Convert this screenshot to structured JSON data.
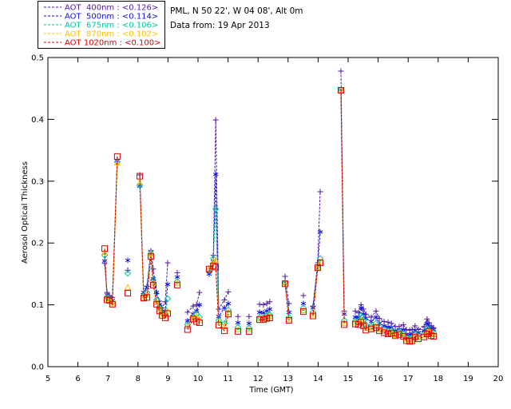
{
  "chart_data": {
    "type": "line",
    "title": "PML, N 50 22', W 04 08', Alt 0m",
    "subtitle": "Data from: 19 Apr 2013",
    "xlabel": "Time (GMT)",
    "ylabel": "Aerosol Optical Thickness",
    "xlim": [
      5,
      20
    ],
    "ylim": [
      0,
      0.5
    ],
    "xticks": [
      "5",
      "6",
      "7",
      "8",
      "9",
      "10",
      "11",
      "12",
      "13",
      "14",
      "15",
      "16",
      "17",
      "18",
      "19",
      "20"
    ],
    "yticks": [
      "0.0",
      "0.1",
      "0.2",
      "0.3",
      "0.4",
      "0.5"
    ],
    "grid": false,
    "legend_position": "top-left",
    "line_style": "dashed",
    "x": [
      6.89,
      6.97,
      7.05,
      7.15,
      7.31,
      7.66,
      8.06,
      8.19,
      8.3,
      8.43,
      8.51,
      8.62,
      8.72,
      8.8,
      8.91,
      8.99,
      9.31,
      9.65,
      9.84,
      9.95,
      10.05,
      10.37,
      10.51,
      10.59,
      10.69,
      10.88,
      11.01,
      11.33,
      11.7,
      12.05,
      12.18,
      12.29,
      12.39,
      12.9,
      13.03,
      13.51,
      13.83,
      13.99,
      14.07,
      14.76,
      14.87,
      15.24,
      15.35,
      15.43,
      15.51,
      15.59,
      15.77,
      15.93,
      16.04,
      16.2,
      16.33,
      16.44,
      16.57,
      16.7,
      16.84,
      16.94,
      17.05,
      17.13,
      17.23,
      17.34,
      17.53,
      17.63,
      17.69,
      17.77,
      17.85
    ],
    "series": [
      {
        "name": "AOT  400nm : <0.126>",
        "color": "#5018a0",
        "marker": "plus",
        "values": [
          0.167,
          0.12,
          0.115,
          0.112,
          0.335,
          0.156,
          0.31,
          0.118,
          0.13,
          0.187,
          0.158,
          0.118,
          0.106,
          0.095,
          0.105,
          0.168,
          0.152,
          0.088,
          0.098,
          0.1,
          0.12,
          0.153,
          0.18,
          0.399,
          0.093,
          0.108,
          0.121,
          0.081,
          0.081,
          0.101,
          0.1,
          0.102,
          0.105,
          0.146,
          0.102,
          0.115,
          0.098,
          0.168,
          0.283,
          0.478,
          0.09,
          0.09,
          0.087,
          0.1,
          0.093,
          0.085,
          0.08,
          0.09,
          0.078,
          0.073,
          0.072,
          0.07,
          0.065,
          0.065,
          0.068,
          0.06,
          0.059,
          0.06,
          0.066,
          0.06,
          0.065,
          0.077,
          0.071,
          0.066,
          0.063
        ]
      },
      {
        "name": "AOT  500nm : <0.114>",
        "color": "#1010e0",
        "marker": "asterisk",
        "values": [
          0.171,
          0.116,
          0.112,
          0.107,
          0.333,
          0.172,
          0.292,
          0.12,
          0.128,
          0.186,
          0.142,
          0.12,
          0.1,
          0.09,
          0.089,
          0.133,
          0.145,
          0.074,
          0.085,
          0.09,
          0.1,
          0.15,
          0.17,
          0.311,
          0.081,
          0.095,
          0.102,
          0.071,
          0.07,
          0.088,
          0.087,
          0.09,
          0.093,
          0.137,
          0.088,
          0.102,
          0.095,
          0.163,
          0.218,
          0.448,
          0.085,
          0.08,
          0.08,
          0.095,
          0.085,
          0.078,
          0.073,
          0.08,
          0.07,
          0.066,
          0.064,
          0.063,
          0.058,
          0.06,
          0.06,
          0.052,
          0.052,
          0.053,
          0.058,
          0.055,
          0.058,
          0.07,
          0.065,
          0.062,
          0.06
        ]
      },
      {
        "name": "AOT  675nm : <0.106>",
        "color": "#00c8a0",
        "marker": "diamond",
        "values": [
          0.18,
          0.112,
          0.11,
          0.104,
          0.331,
          0.151,
          0.293,
          0.115,
          0.12,
          0.183,
          0.14,
          0.108,
          0.095,
          0.087,
          0.085,
          0.11,
          0.138,
          0.068,
          0.08,
          0.085,
          0.08,
          0.156,
          0.175,
          0.255,
          0.075,
          0.07,
          0.092,
          0.064,
          0.063,
          0.08,
          0.08,
          0.083,
          0.084,
          0.136,
          0.08,
          0.095,
          0.088,
          0.16,
          0.175,
          0.446,
          0.075,
          0.074,
          0.074,
          0.082,
          0.075,
          0.068,
          0.066,
          0.07,
          0.064,
          0.06,
          0.058,
          0.058,
          0.053,
          0.056,
          0.054,
          0.047,
          0.046,
          0.047,
          0.053,
          0.05,
          0.053,
          0.062,
          0.06,
          0.056,
          0.055
        ]
      },
      {
        "name": "AOT  870nm : <0.102>",
        "color": "#ffc000",
        "marker": "triangle",
        "values": [
          0.185,
          0.11,
          0.108,
          0.102,
          0.33,
          0.128,
          0.298,
          0.112,
          0.116,
          0.182,
          0.135,
          0.104,
          0.093,
          0.085,
          0.082,
          0.09,
          0.135,
          0.065,
          0.079,
          0.082,
          0.076,
          0.158,
          0.17,
          0.172,
          0.072,
          0.065,
          0.088,
          0.06,
          0.06,
          0.078,
          0.078,
          0.08,
          0.082,
          0.135,
          0.077,
          0.091,
          0.084,
          0.16,
          0.17,
          0.446,
          0.07,
          0.071,
          0.071,
          0.075,
          0.07,
          0.062,
          0.063,
          0.066,
          0.06,
          0.057,
          0.055,
          0.056,
          0.051,
          0.054,
          0.051,
          0.044,
          0.043,
          0.044,
          0.05,
          0.047,
          0.05,
          0.057,
          0.057,
          0.053,
          0.052
        ]
      },
      {
        "name": "AOT 1020nm : <0.100>",
        "color": "#e00000",
        "marker": "square",
        "values": [
          0.191,
          0.108,
          0.107,
          0.101,
          0.34,
          0.119,
          0.308,
          0.111,
          0.112,
          0.178,
          0.132,
          0.101,
          0.09,
          0.083,
          0.079,
          0.086,
          0.132,
          0.06,
          0.077,
          0.073,
          0.071,
          0.158,
          0.163,
          0.161,
          0.067,
          0.058,
          0.085,
          0.057,
          0.057,
          0.076,
          0.076,
          0.078,
          0.079,
          0.134,
          0.075,
          0.089,
          0.082,
          0.16,
          0.168,
          0.447,
          0.068,
          0.069,
          0.068,
          0.072,
          0.066,
          0.059,
          0.061,
          0.063,
          0.058,
          0.055,
          0.053,
          0.054,
          0.05,
          0.052,
          0.049,
          0.042,
          0.041,
          0.042,
          0.048,
          0.045,
          0.048,
          0.053,
          0.057,
          0.05,
          0.049
        ]
      }
    ]
  }
}
